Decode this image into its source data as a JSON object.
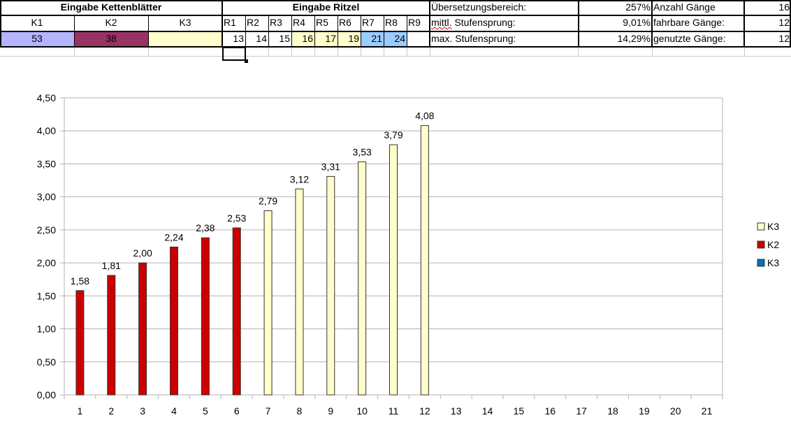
{
  "sheet": {
    "header_chainrings": "Eingabe Kettenblätter",
    "header_sprockets": "Eingabe Ritzel",
    "chainring_labels": [
      "K1",
      "K2",
      "K3"
    ],
    "chainring_values": [
      "53",
      "38",
      ""
    ],
    "chainring_colors": [
      "#b4b4ff",
      "#993366",
      "#ffffcc"
    ],
    "sprocket_labels": [
      "R1",
      "R2",
      "R3",
      "R4",
      "R5",
      "R6",
      "R7",
      "R8",
      "R9"
    ],
    "sprocket_values": [
      "13",
      "14",
      "15",
      "16",
      "17",
      "19",
      "21",
      "24",
      ""
    ],
    "sprocket_colors": [
      "#ffffff",
      "#ffffff",
      "#ffffff",
      "#ffffcc",
      "#ffffcc",
      "#ffffcc",
      "#99ccff",
      "#99ccff",
      "#ffffff"
    ],
    "stats": [
      {
        "label": "Übersetzungsbereich:",
        "value": "257%",
        "label2": "Anzahl Gänge",
        "value2": "16"
      },
      {
        "label_prefix": "mittl.",
        "label_suffix": " Stufensprung:",
        "value": "9,01%",
        "label2": "fahrbare Gänge:",
        "value2": "12"
      },
      {
        "label": "max. Stufensprung:",
        "value": "14,29%",
        "label2": "genutzte Gänge:",
        "value2": "12"
      }
    ]
  },
  "chart_data": {
    "type": "bar",
    "title": "",
    "xlabel": "",
    "ylabel": "",
    "categories": [
      "1",
      "2",
      "3",
      "4",
      "5",
      "6",
      "7",
      "8",
      "9",
      "10",
      "11",
      "12",
      "13",
      "14",
      "15",
      "16",
      "17",
      "18",
      "19",
      "20",
      "21"
    ],
    "ylim": [
      0,
      4.5
    ],
    "ytick_values": [
      0,
      0.5,
      1.0,
      1.5,
      2.0,
      2.5,
      3.0,
      3.5,
      4.0,
      4.5
    ],
    "ytick_labels": [
      "0,00",
      "0,50",
      "1,00",
      "1,50",
      "2,00",
      "2,50",
      "3,00",
      "3,50",
      "4,00",
      "4,50"
    ],
    "series": [
      {
        "name": "K3",
        "color": "#ffffcc",
        "values": [
          null,
          null,
          null,
          null,
          null,
          null,
          2.79,
          3.12,
          3.31,
          3.53,
          3.79,
          4.08,
          null,
          null,
          null,
          null,
          null,
          null,
          null,
          null,
          null
        ],
        "labels": [
          "",
          "",
          "",
          "",
          "",
          "",
          "2,79",
          "3,12",
          "3,31",
          "3,53",
          "3,79",
          "4,08",
          "",
          "",
          "",
          "",
          "",
          "",
          "",
          "",
          ""
        ]
      },
      {
        "name": "K2",
        "color": "#cc0000",
        "values": [
          1.58,
          1.81,
          2.0,
          2.24,
          2.38,
          2.53,
          null,
          null,
          null,
          null,
          null,
          null,
          null,
          null,
          null,
          null,
          null,
          null,
          null,
          null,
          null
        ],
        "labels": [
          "1,58",
          "1,81",
          "2,00",
          "2,24",
          "2,38",
          "2,53",
          "",
          "",
          "",
          "",
          "",
          "",
          "",
          "",
          "",
          "",
          "",
          "",
          "",
          "",
          ""
        ]
      },
      {
        "name": "K3",
        "color": "#0070c0",
        "values": [
          null,
          null,
          null,
          null,
          null,
          null,
          null,
          null,
          null,
          null,
          null,
          null,
          null,
          null,
          null,
          null,
          null,
          null,
          null,
          null,
          null
        ],
        "labels": []
      }
    ],
    "grid": true,
    "legend_position": "right"
  }
}
